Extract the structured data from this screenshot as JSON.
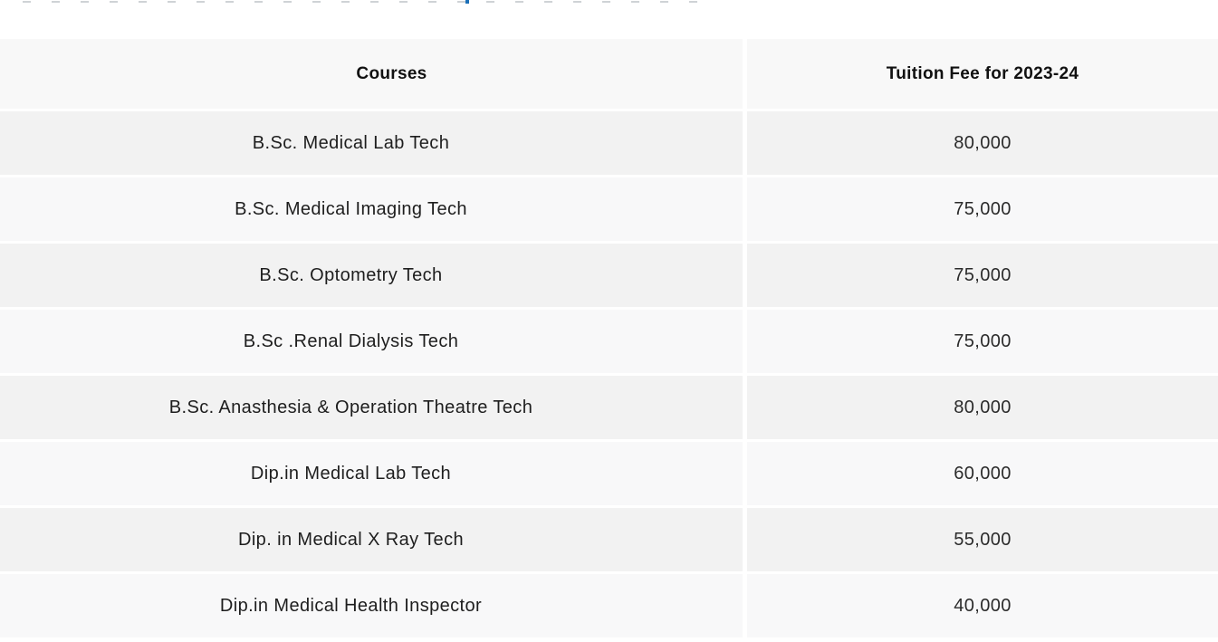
{
  "top_strip": {
    "description": "bottom sliver of a cut-off text line",
    "fragment_color": "#cfd3d6",
    "accent_fragment_color": "#1c70b8"
  },
  "table": {
    "columns": [
      {
        "label": "Courses"
      },
      {
        "label": "Tuition Fee for 2023-24"
      }
    ],
    "rows": [
      {
        "course": "B.Sc. Medical Lab Tech",
        "fee": "80,000"
      },
      {
        "course": "B.Sc. Medical Imaging Tech",
        "fee": "75,000"
      },
      {
        "course": "B.Sc. Optometry Tech",
        "fee": "75,000"
      },
      {
        "course": "B.Sc .Renal Dialysis Tech",
        "fee": "75,000"
      },
      {
        "course": "B.Sc. Anasthesia & Operation Theatre Tech",
        "fee": "80,000"
      },
      {
        "course": "Dip.in Medical Lab Tech",
        "fee": "60,000"
      },
      {
        "course": "Dip. in Medical X Ray Tech",
        "fee": "55,000"
      },
      {
        "course": "Dip.in Medical Health Inspector",
        "fee": "40,000"
      }
    ],
    "colors": {
      "header_bg": "#f8f8f8",
      "row_odd_bg": "#f2f2f2",
      "row_even_bg": "#f8f8f9",
      "text": "#1e1e1e",
      "header_text": "#111111"
    }
  }
}
